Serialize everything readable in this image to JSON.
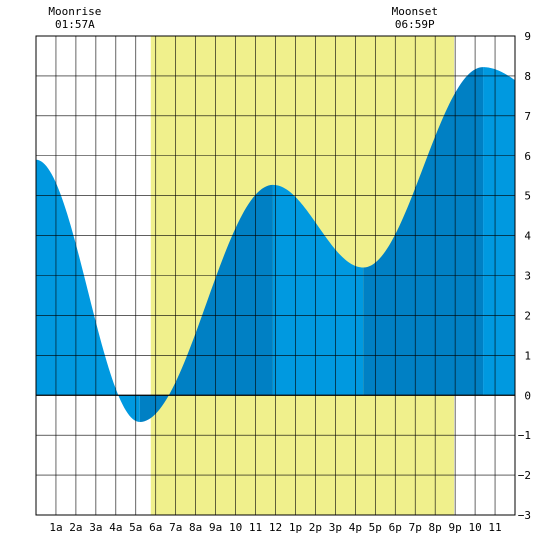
{
  "chart_data": {
    "type": "area",
    "title": "",
    "xlabel": "",
    "ylabel": "",
    "x_range": [
      0,
      24
    ],
    "ylim": [
      -3,
      9
    ],
    "grid": true,
    "x_ticks": [
      {
        "x": 1,
        "label": "1a"
      },
      {
        "x": 2,
        "label": "2a"
      },
      {
        "x": 3,
        "label": "3a"
      },
      {
        "x": 4,
        "label": "4a"
      },
      {
        "x": 5,
        "label": "5a"
      },
      {
        "x": 6,
        "label": "6a"
      },
      {
        "x": 7,
        "label": "7a"
      },
      {
        "x": 8,
        "label": "8a"
      },
      {
        "x": 9,
        "label": "9a"
      },
      {
        "x": 10,
        "label": "10"
      },
      {
        "x": 11,
        "label": "11"
      },
      {
        "x": 12,
        "label": "12"
      },
      {
        "x": 13,
        "label": "1p"
      },
      {
        "x": 14,
        "label": "2p"
      },
      {
        "x": 15,
        "label": "3p"
      },
      {
        "x": 16,
        "label": "4p"
      },
      {
        "x": 17,
        "label": "5p"
      },
      {
        "x": 18,
        "label": "6p"
      },
      {
        "x": 19,
        "label": "7p"
      },
      {
        "x": 20,
        "label": "8p"
      },
      {
        "x": 21,
        "label": "9p"
      },
      {
        "x": 22,
        "label": "10"
      },
      {
        "x": 23,
        "label": "11"
      }
    ],
    "y_ticks": [
      -3,
      -2,
      -1,
      0,
      1,
      2,
      3,
      4,
      5,
      6,
      7,
      8,
      9
    ],
    "daylight": {
      "start": 5.75,
      "end": 20.95
    },
    "extremes": [
      {
        "x": 5.2,
        "y": -0.67,
        "type": "low"
      },
      {
        "x": 11.87,
        "y": 5.27,
        "type": "high"
      },
      {
        "x": 16.4,
        "y": 3.2,
        "type": "low"
      },
      {
        "x": 22.4,
        "y": 8.22,
        "type": "high"
      }
    ],
    "start_level": 5.9,
    "end_level": 7.35,
    "annotations": [
      {
        "label": "Moonrise",
        "time": "01:57A"
      },
      {
        "label": "Moonset",
        "time": "06:59P"
      }
    ],
    "colors": {
      "day": "#f0f08c",
      "tide_light": "#0099e0",
      "tide_dark": "#0080c4",
      "grid": "#000000"
    }
  }
}
